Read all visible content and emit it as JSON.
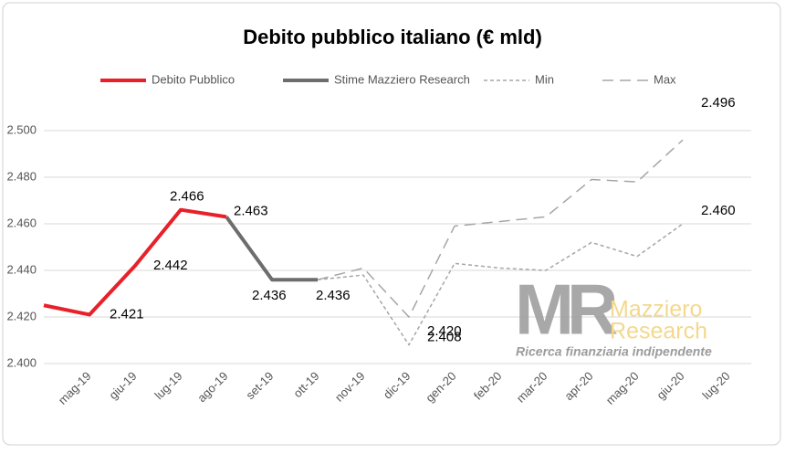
{
  "chart_data": {
    "type": "line",
    "title": "Debito pubblico italiano (€ mld)",
    "categories": [
      null,
      "mag-19",
      "giu-19",
      "lug-19",
      "ago-19",
      "set-19",
      "ott-19",
      "nov-19",
      "dic-19",
      "gen-20",
      "feb-20",
      "mar-20",
      "apr-20",
      "mag-20",
      "giu-20",
      "lug-20"
    ],
    "series": [
      {
        "name": "Debito Pubblico",
        "color": "#e8202a",
        "dash": "solid",
        "values": [
          2425,
          2421,
          2442,
          2466,
          2463,
          null,
          null,
          null,
          null,
          null,
          null,
          null,
          null,
          null,
          null,
          null
        ],
        "value_labels": [
          null,
          "2.421",
          "2.442",
          "2.466",
          "2.463",
          null,
          null,
          null,
          null,
          null,
          null,
          null,
          null,
          null,
          null,
          null
        ]
      },
      {
        "name": "Stime Mazziero Research",
        "color": "#6d6d6d",
        "dash": "solid",
        "values": [
          null,
          null,
          null,
          null,
          2463,
          2436,
          2436,
          null,
          null,
          null,
          null,
          null,
          null,
          null,
          null,
          null
        ],
        "value_labels": [
          null,
          null,
          null,
          null,
          null,
          "2.436",
          "2.436",
          null,
          null,
          null,
          null,
          null,
          null,
          null,
          null,
          null
        ]
      },
      {
        "name": "Min",
        "color": "#a6a6a6",
        "dash": "short",
        "values": [
          null,
          null,
          null,
          null,
          null,
          null,
          2436,
          2438,
          2408,
          2443,
          2441,
          2440,
          2452,
          2446,
          2460,
          null
        ],
        "value_labels": [
          null,
          null,
          null,
          null,
          null,
          null,
          null,
          null,
          "2.408",
          null,
          null,
          null,
          null,
          null,
          "2.460",
          null
        ]
      },
      {
        "name": "Max",
        "color": "#a6a6a6",
        "dash": "long",
        "values": [
          null,
          null,
          null,
          null,
          null,
          null,
          2436,
          2441,
          2420,
          2459,
          2461,
          2463,
          2479,
          2478,
          2496,
          null
        ],
        "value_labels": [
          null,
          null,
          null,
          null,
          null,
          null,
          null,
          null,
          "2.420",
          null,
          null,
          null,
          null,
          null,
          "2.496",
          null
        ]
      }
    ],
    "ylim": [
      2400,
      2500
    ],
    "yticks": [
      {
        "value": 2400,
        "label": "2.400"
      },
      {
        "value": 2420,
        "label": "2.420"
      },
      {
        "value": 2440,
        "label": "2.440"
      },
      {
        "value": 2460,
        "label": "2.460"
      },
      {
        "value": 2480,
        "label": "2.480"
      },
      {
        "value": 2500,
        "label": "2.500"
      }
    ],
    "grid": true,
    "legend": "top"
  },
  "logo": {
    "mark": "MR",
    "line1": "Mazziero",
    "line2": "Research",
    "tagline": "Ricerca finanziaria indipendente"
  }
}
